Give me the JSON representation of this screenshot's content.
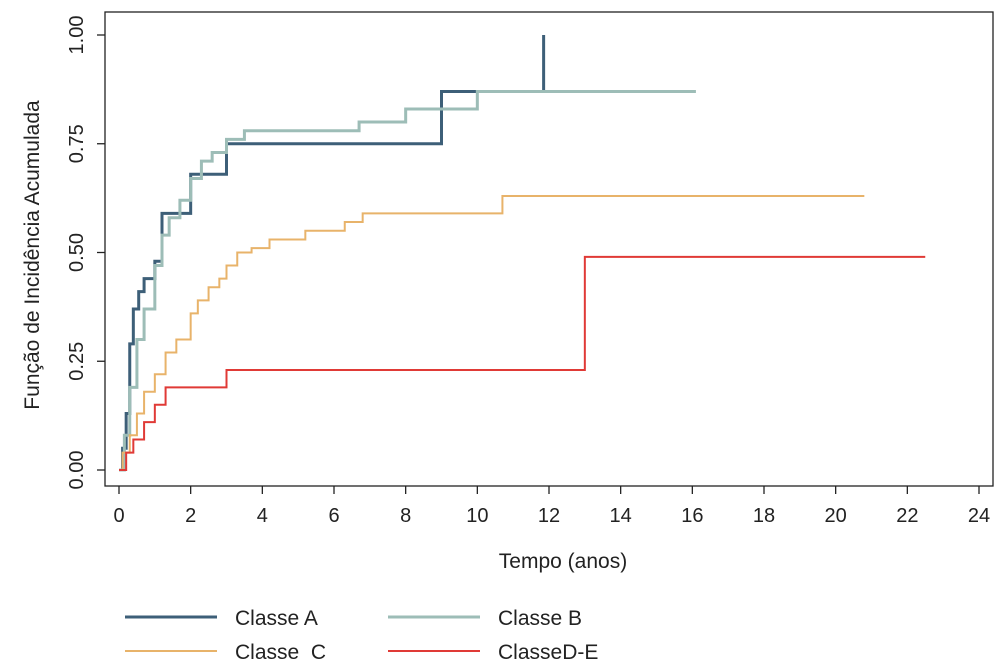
{
  "chart_data": {
    "type": "line",
    "step": true,
    "xlabel": "Tempo (anos)",
    "ylabel": "Função de Incidência Acumulada",
    "xlim": [
      0,
      24
    ],
    "ylim": [
      0,
      1
    ],
    "xticks": [
      0,
      2,
      4,
      6,
      8,
      10,
      12,
      14,
      16,
      18,
      20,
      22,
      24
    ],
    "yticks": [
      "0.00",
      "0.25",
      "0.50",
      "0.75",
      "1.00"
    ],
    "grid": false,
    "legend_position": "bottom",
    "series": [
      {
        "name": "Classe A",
        "color": "#3d5f78",
        "width": 3,
        "x": [
          0,
          0.1,
          0.2,
          0.3,
          0.4,
          0.55,
          0.7,
          1.0,
          1.2,
          2.0,
          3.0,
          9.0,
          11.85,
          11.85
        ],
        "y": [
          0,
          0.05,
          0.13,
          0.29,
          0.37,
          0.41,
          0.44,
          0.48,
          0.59,
          0.68,
          0.75,
          0.87,
          0.87,
          1.0
        ]
      },
      {
        "name": "Classe B",
        "color": "#9dbdb7",
        "width": 3,
        "x": [
          0,
          0.15,
          0.3,
          0.5,
          0.7,
          1.0,
          1.2,
          1.4,
          1.7,
          2.0,
          2.3,
          2.6,
          3.0,
          3.5,
          6.7,
          8.0,
          10.0,
          16.1
        ],
        "y": [
          0,
          0.08,
          0.19,
          0.3,
          0.37,
          0.47,
          0.54,
          0.58,
          0.62,
          0.67,
          0.71,
          0.73,
          0.76,
          0.78,
          0.8,
          0.83,
          0.87,
          0.87
        ]
      },
      {
        "name": "Classe C",
        "color": "#e8b36a",
        "width": 2,
        "x": [
          0,
          0.1,
          0.3,
          0.5,
          0.7,
          1.0,
          1.3,
          1.6,
          2.0,
          2.2,
          2.5,
          2.8,
          3.0,
          3.3,
          3.7,
          4.2,
          5.2,
          6.3,
          6.8,
          8.0,
          10.7,
          20.8
        ],
        "y": [
          0,
          0.04,
          0.08,
          0.13,
          0.18,
          0.22,
          0.27,
          0.3,
          0.36,
          0.39,
          0.42,
          0.44,
          0.47,
          0.5,
          0.51,
          0.53,
          0.55,
          0.57,
          0.59,
          0.59,
          0.63,
          0.63
        ],
        "display_name": "Classe  C"
      },
      {
        "name": "ClasseD-E",
        "color": "#e03a36",
        "width": 2,
        "x": [
          0,
          0.2,
          0.4,
          0.7,
          1.0,
          1.3,
          3.0,
          13.0,
          22.5
        ],
        "y": [
          0,
          0.04,
          0.07,
          0.11,
          0.15,
          0.19,
          0.23,
          0.49,
          0.49
        ]
      }
    ]
  }
}
